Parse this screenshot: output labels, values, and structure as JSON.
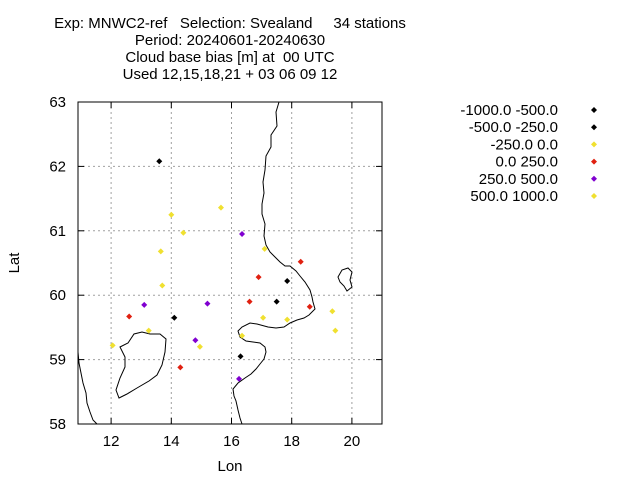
{
  "title_lines": [
    "Exp: MNWC2-ref   Selection: Svealand     34 stations",
    "Period: 20240601-20240630",
    "Cloud base bias [m] at  00 UTC",
    "Used 12,15,18,21 + 03 06 09 12"
  ],
  "chart_data": {
    "type": "scatter",
    "xlabel": "Lon",
    "ylabel": "Lat",
    "xlim": [
      10.9,
      21.0
    ],
    "ylim": [
      58,
      63
    ],
    "xticks": [
      12,
      14,
      16,
      18,
      20
    ],
    "yticks": [
      58,
      59,
      60,
      61,
      62,
      63
    ],
    "grid": true,
    "legend_position": "right",
    "series": [
      {
        "name": "-1000.0 -500.0",
        "color": "#000000",
        "points": []
      },
      {
        "name": "-500.0 -250.0",
        "color": "#000000",
        "points": [
          [
            13.6,
            62.08
          ],
          [
            14.1,
            59.65
          ],
          [
            16.3,
            59.05
          ],
          [
            17.5,
            59.9
          ],
          [
            17.85,
            60.22
          ]
        ]
      },
      {
        "name": "-250.0 0.0",
        "color": "#f0e030",
        "points": [
          [
            14.0,
            61.25
          ],
          [
            13.65,
            60.68
          ],
          [
            13.7,
            60.15
          ],
          [
            14.4,
            60.97
          ],
          [
            15.65,
            61.36
          ],
          [
            17.1,
            60.72
          ],
          [
            13.25,
            59.45
          ],
          [
            14.95,
            59.2
          ],
          [
            16.35,
            59.37
          ],
          [
            17.05,
            59.65
          ],
          [
            17.85,
            59.62
          ],
          [
            19.35,
            59.75
          ],
          [
            19.45,
            59.45
          ],
          [
            12.05,
            59.22
          ]
        ]
      },
      {
        "name": "0.0 250.0",
        "color": "#e02010",
        "points": [
          [
            12.6,
            59.67
          ],
          [
            14.3,
            58.88
          ],
          [
            16.6,
            59.9
          ],
          [
            16.9,
            60.28
          ],
          [
            18.3,
            60.52
          ],
          [
            18.6,
            59.82
          ]
        ]
      },
      {
        "name": "250.0 500.0",
        "color": "#8000d0",
        "points": [
          [
            13.1,
            59.85
          ],
          [
            15.2,
            59.87
          ],
          [
            14.8,
            59.3
          ],
          [
            16.35,
            60.95
          ],
          [
            16.25,
            58.7
          ]
        ]
      },
      {
        "name": "500.0 1000.0",
        "color": "#f0e030",
        "points": []
      }
    ]
  }
}
